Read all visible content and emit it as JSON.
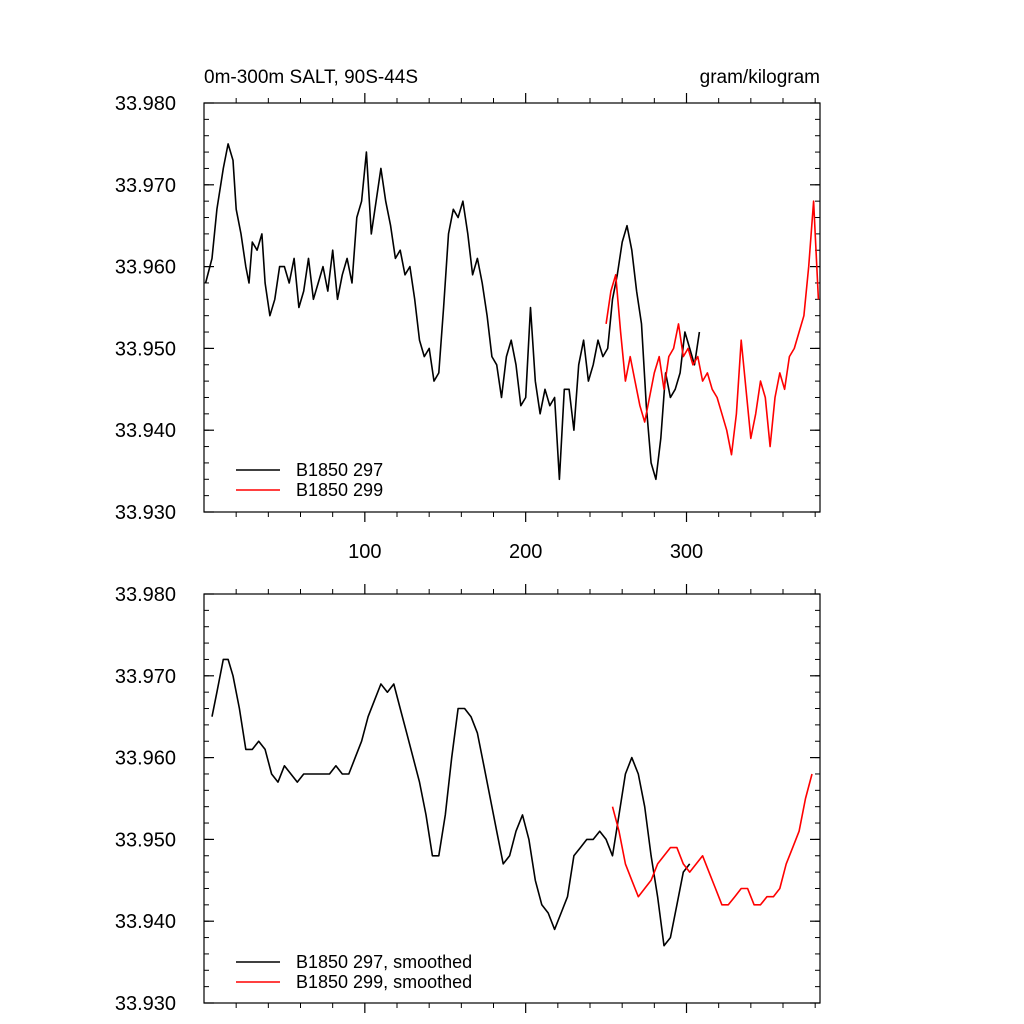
{
  "chart_data": [
    {
      "type": "line",
      "title": "0m-300m SALT, 90S-44S",
      "units": "gram/kilogram",
      "xlabel": "",
      "ylabel": "",
      "xlim": [
        0,
        383
      ],
      "ylim": [
        33.93,
        33.98
      ],
      "x_ticks": [
        100,
        200,
        300
      ],
      "x_tick_labels": [
        "100",
        "200",
        "300"
      ],
      "y_ticks": [
        33.93,
        33.94,
        33.95,
        33.96,
        33.97,
        33.98
      ],
      "y_tick_labels": [
        "33.930",
        "33.940",
        "33.950",
        "33.960",
        "33.970",
        "33.980"
      ],
      "grid": false,
      "legend_position": "bottom-left",
      "series": [
        {
          "name": "B1850 297",
          "color": "#000000",
          "x": [
            1,
            5,
            8,
            12,
            15,
            18,
            20,
            23,
            26,
            28,
            30,
            33,
            36,
            38,
            41,
            44,
            47,
            50,
            53,
            56,
            59,
            62,
            65,
            68,
            71,
            74,
            77,
            80,
            83,
            86,
            89,
            92,
            95,
            98,
            101,
            104,
            107,
            110,
            113,
            116,
            119,
            122,
            125,
            128,
            131,
            134,
            137,
            140,
            143,
            146,
            149,
            152,
            155,
            158,
            161,
            164,
            167,
            170,
            173,
            176,
            179,
            182,
            185,
            188,
            191,
            194,
            197,
            200,
            203,
            206,
            209,
            212,
            215,
            218,
            221,
            224,
            227,
            230,
            233,
            236,
            239,
            242,
            245,
            248,
            251,
            254,
            257,
            260,
            263,
            266,
            269,
            272,
            275,
            278,
            281,
            284,
            287,
            290,
            293,
            296,
            299,
            302,
            305,
            308
          ],
          "values": [
            33.958,
            33.961,
            33.967,
            33.972,
            33.975,
            33.973,
            33.967,
            33.964,
            33.96,
            33.958,
            33.963,
            33.962,
            33.964,
            33.958,
            33.954,
            33.956,
            33.96,
            33.96,
            33.958,
            33.961,
            33.955,
            33.957,
            33.961,
            33.956,
            33.958,
            33.96,
            33.957,
            33.962,
            33.956,
            33.959,
            33.961,
            33.958,
            33.966,
            33.968,
            33.974,
            33.964,
            33.968,
            33.972,
            33.968,
            33.965,
            33.961,
            33.962,
            33.959,
            33.96,
            33.956,
            33.951,
            33.949,
            33.95,
            33.946,
            33.947,
            33.955,
            33.964,
            33.967,
            33.966,
            33.968,
            33.964,
            33.959,
            33.961,
            33.958,
            33.954,
            33.949,
            33.948,
            33.944,
            33.949,
            33.951,
            33.948,
            33.943,
            33.944,
            33.955,
            33.946,
            33.942,
            33.945,
            33.943,
            33.944,
            33.934,
            33.945,
            33.945,
            33.94,
            33.948,
            33.951,
            33.946,
            33.948,
            33.951,
            33.949,
            33.95,
            33.956,
            33.959,
            33.963,
            33.965,
            33.962,
            33.957,
            33.953,
            33.943,
            33.936,
            33.934,
            33.939,
            33.947,
            33.944,
            33.945,
            33.947,
            33.952,
            33.95,
            33.948,
            33.952
          ]
        },
        {
          "name": "B1850 299",
          "color": "#ff0000",
          "x": [
            250,
            253,
            256,
            259,
            262,
            265,
            268,
            271,
            274,
            277,
            280,
            283,
            286,
            289,
            292,
            295,
            298,
            301,
            304,
            307,
            310,
            313,
            316,
            319,
            322,
            325,
            328,
            331,
            334,
            337,
            340,
            343,
            346,
            349,
            352,
            355,
            358,
            361,
            364,
            367,
            370,
            373,
            376,
            379,
            382
          ],
          "values": [
            33.953,
            33.957,
            33.959,
            33.952,
            33.946,
            33.949,
            33.946,
            33.943,
            33.941,
            33.944,
            33.947,
            33.949,
            33.945,
            33.949,
            33.95,
            33.953,
            33.949,
            33.95,
            33.948,
            33.949,
            33.946,
            33.947,
            33.945,
            33.944,
            33.942,
            33.94,
            33.937,
            33.942,
            33.951,
            33.945,
            33.939,
            33.942,
            33.946,
            33.944,
            33.938,
            33.944,
            33.947,
            33.945,
            33.949,
            33.95,
            33.952,
            33.954,
            33.96,
            33.968,
            33.956
          ]
        }
      ]
    },
    {
      "type": "line",
      "title": "",
      "xlabel": "",
      "ylabel": "",
      "xlim": [
        0,
        383
      ],
      "ylim": [
        33.93,
        33.98
      ],
      "y_ticks": [
        33.93,
        33.94,
        33.95,
        33.96,
        33.97,
        33.98
      ],
      "y_tick_labels": [
        "33.930",
        "33.940",
        "33.950",
        "33.960",
        "33.970",
        "33.980"
      ],
      "grid": false,
      "legend_position": "bottom-left",
      "series": [
        {
          "name": "B1850 297, smoothed",
          "color": "#000000",
          "x": [
            5,
            8,
            12,
            15,
            18,
            22,
            26,
            30,
            34,
            38,
            42,
            46,
            50,
            54,
            58,
            62,
            66,
            70,
            74,
            78,
            82,
            86,
            90,
            94,
            98,
            102,
            106,
            110,
            114,
            118,
            122,
            126,
            130,
            134,
            138,
            142,
            146,
            150,
            154,
            158,
            162,
            166,
            170,
            174,
            178,
            182,
            186,
            190,
            194,
            198,
            202,
            206,
            210,
            214,
            218,
            222,
            226,
            230,
            234,
            238,
            242,
            246,
            250,
            254,
            258,
            262,
            266,
            270,
            274,
            278,
            282,
            286,
            290,
            294,
            298,
            302
          ],
          "values": [
            33.965,
            33.968,
            33.972,
            33.972,
            33.97,
            33.966,
            33.961,
            33.961,
            33.962,
            33.961,
            33.958,
            33.957,
            33.959,
            33.958,
            33.957,
            33.958,
            33.958,
            33.958,
            33.958,
            33.958,
            33.959,
            33.958,
            33.958,
            33.96,
            33.962,
            33.965,
            33.967,
            33.969,
            33.968,
            33.969,
            33.966,
            33.963,
            33.96,
            33.957,
            33.953,
            33.948,
            33.948,
            33.953,
            33.96,
            33.966,
            33.966,
            33.965,
            33.963,
            33.959,
            33.955,
            33.951,
            33.947,
            33.948,
            33.951,
            33.953,
            33.95,
            33.945,
            33.942,
            33.941,
            33.939,
            33.941,
            33.943,
            33.948,
            33.949,
            33.95,
            33.95,
            33.951,
            33.95,
            33.948,
            33.953,
            33.958,
            33.96,
            33.958,
            33.954,
            33.948,
            33.943,
            33.937,
            33.938,
            33.942,
            33.946,
            33.947
          ]
        },
        {
          "name": "B1850 299, smoothed",
          "color": "#ff0000",
          "x": [
            254,
            258,
            262,
            266,
            270,
            274,
            278,
            282,
            286,
            290,
            294,
            298,
            302,
            306,
            310,
            314,
            318,
            322,
            326,
            330,
            334,
            338,
            342,
            346,
            350,
            354,
            358,
            362,
            366,
            370,
            374,
            378
          ],
          "values": [
            33.954,
            33.951,
            33.947,
            33.945,
            33.943,
            33.944,
            33.945,
            33.947,
            33.948,
            33.949,
            33.949,
            33.947,
            33.946,
            33.947,
            33.948,
            33.946,
            33.944,
            33.942,
            33.942,
            33.943,
            33.944,
            33.944,
            33.942,
            33.942,
            33.943,
            33.943,
            33.944,
            33.947,
            33.949,
            33.951,
            33.955,
            33.958
          ]
        }
      ]
    }
  ]
}
